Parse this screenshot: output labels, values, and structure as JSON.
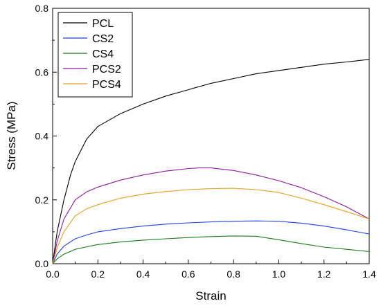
{
  "chart_data": {
    "type": "line",
    "title": "",
    "xlabel": "Strain",
    "ylabel": "Stress (MPa)",
    "xlim": [
      0,
      1.4
    ],
    "ylim": [
      0,
      0.8
    ],
    "x_ticks": [
      "0.0",
      "0.2",
      "0.4",
      "0.6",
      "0.8",
      "1.0",
      "1.2",
      "1.4"
    ],
    "y_ticks": [
      "0.0",
      "0.2",
      "0.4",
      "0.6",
      "0.8"
    ],
    "grid": false,
    "legend_position": "top-left",
    "series": [
      {
        "name": "PCL",
        "color": "#000000",
        "x": [
          0,
          0.02,
          0.05,
          0.08,
          0.1,
          0.15,
          0.2,
          0.3,
          0.4,
          0.5,
          0.6,
          0.7,
          0.8,
          0.9,
          1.0,
          1.1,
          1.2,
          1.3,
          1.4
        ],
        "y": [
          0,
          0.1,
          0.2,
          0.28,
          0.32,
          0.39,
          0.43,
          0.47,
          0.5,
          0.525,
          0.545,
          0.565,
          0.58,
          0.595,
          0.605,
          0.615,
          0.625,
          0.632,
          0.64
        ]
      },
      {
        "name": "CS2",
        "color": "#1f3fe0",
        "x": [
          0,
          0.02,
          0.05,
          0.1,
          0.15,
          0.2,
          0.3,
          0.4,
          0.5,
          0.6,
          0.7,
          0.8,
          0.9,
          1.0,
          1.1,
          1.2,
          1.3,
          1.4
        ],
        "y": [
          0,
          0.03,
          0.055,
          0.078,
          0.09,
          0.1,
          0.11,
          0.118,
          0.124,
          0.128,
          0.131,
          0.133,
          0.134,
          0.133,
          0.127,
          0.118,
          0.106,
          0.093
        ]
      },
      {
        "name": "CS4",
        "color": "#1a7a1a",
        "x": [
          0,
          0.02,
          0.05,
          0.1,
          0.15,
          0.2,
          0.3,
          0.4,
          0.5,
          0.6,
          0.7,
          0.8,
          0.9,
          1.0,
          1.1,
          1.2,
          1.3,
          1.4
        ],
        "y": [
          0,
          0.015,
          0.03,
          0.045,
          0.053,
          0.06,
          0.068,
          0.074,
          0.078,
          0.082,
          0.085,
          0.087,
          0.086,
          0.075,
          0.063,
          0.052,
          0.045,
          0.038
        ]
      },
      {
        "name": "PCS2",
        "color": "#8b1a9a",
        "x": [
          0,
          0.02,
          0.05,
          0.1,
          0.15,
          0.2,
          0.3,
          0.4,
          0.5,
          0.6,
          0.65,
          0.7,
          0.8,
          0.9,
          1.0,
          1.1,
          1.2,
          1.3,
          1.4
        ],
        "y": [
          0,
          0.07,
          0.14,
          0.2,
          0.225,
          0.24,
          0.262,
          0.278,
          0.29,
          0.298,
          0.3,
          0.3,
          0.292,
          0.278,
          0.26,
          0.238,
          0.21,
          0.178,
          0.14
        ]
      },
      {
        "name": "PCS4",
        "color": "#e0a020",
        "x": [
          0,
          0.02,
          0.05,
          0.1,
          0.15,
          0.2,
          0.3,
          0.4,
          0.5,
          0.6,
          0.7,
          0.8,
          0.9,
          1.0,
          1.1,
          1.2,
          1.3,
          1.4
        ],
        "y": [
          0,
          0.05,
          0.1,
          0.15,
          0.172,
          0.185,
          0.205,
          0.218,
          0.226,
          0.232,
          0.235,
          0.236,
          0.232,
          0.223,
          0.205,
          0.185,
          0.163,
          0.14
        ]
      }
    ]
  }
}
